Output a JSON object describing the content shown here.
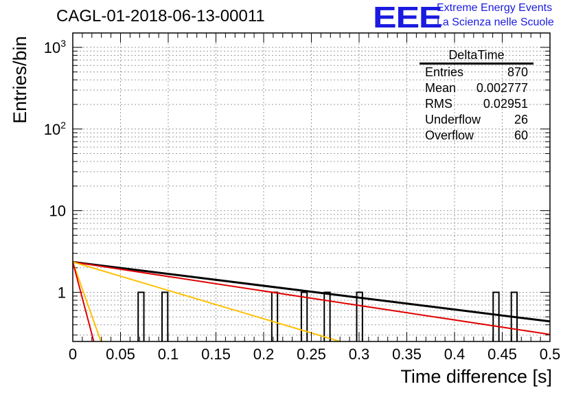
{
  "title": "CAGL-01-2018-06-13-00011",
  "logo": {
    "text": "EEE",
    "line1": "Extreme Energy Events",
    "line2": "La Scienza nelle Scuole",
    "color": "#1a1ae0"
  },
  "stats": {
    "name": "DeltaTime",
    "rows": [
      {
        "label": "Entries",
        "value": "870"
      },
      {
        "label": "Mean",
        "value": "0.002777"
      },
      {
        "label": "RMS",
        "value": "0.02951"
      },
      {
        "label": "Underflow",
        "value": "26"
      },
      {
        "label": "Overflow",
        "value": "60"
      }
    ]
  },
  "chart_data": {
    "type": "bar",
    "xlabel": "Time difference [s]",
    "ylabel": "Entries/bin",
    "xlim": [
      0,
      0.5
    ],
    "ylim": [
      0.25,
      1500
    ],
    "log_y": true,
    "grid": true,
    "x_ticks": [
      "0",
      "0.05",
      "0.1",
      "0.15",
      "0.2",
      "0.25",
      "0.3",
      "0.35",
      "0.4",
      "0.45",
      "0.5"
    ],
    "y_tick_labels": [
      {
        "value": 1,
        "label": "1"
      },
      {
        "value": 10,
        "label": "10"
      },
      {
        "value": 100,
        "label": "10^2"
      },
      {
        "value": 1000,
        "label": "10^3"
      }
    ],
    "bins": [
      {
        "x0": 0.0685,
        "x1": 0.0745,
        "value": 1
      },
      {
        "x0": 0.0935,
        "x1": 0.0995,
        "value": 1
      },
      {
        "x0": 0.2085,
        "x1": 0.2145,
        "value": 1
      },
      {
        "x0": 0.2395,
        "x1": 0.2455,
        "value": 1
      },
      {
        "x0": 0.2635,
        "x1": 0.2695,
        "value": 1
      },
      {
        "x0": 0.2975,
        "x1": 0.3035,
        "value": 1
      },
      {
        "x0": 0.4405,
        "x1": 0.4465,
        "value": 1
      },
      {
        "x0": 0.4595,
        "x1": 0.4655,
        "value": 1
      }
    ],
    "curves": [
      {
        "color": "#000000",
        "width": 3,
        "points": [
          [
            0,
            2.35
          ],
          [
            0.5,
            0.44
          ]
        ]
      },
      {
        "color": "#e00000",
        "width": 2,
        "points": [
          [
            0,
            2.35
          ],
          [
            0.5,
            0.305
          ]
        ]
      },
      {
        "color": "#ffc000",
        "width": 2,
        "points": [
          [
            0,
            2.35
          ],
          [
            0.28,
            0.25
          ]
        ]
      },
      {
        "color": "#ffc000",
        "width": 2,
        "points": [
          [
            0,
            2.35
          ],
          [
            0.0295,
            0.25
          ]
        ]
      },
      {
        "color": "#e00000",
        "width": 2,
        "points": [
          [
            0,
            2.35
          ],
          [
            0.022,
            0.25
          ]
        ]
      }
    ]
  }
}
